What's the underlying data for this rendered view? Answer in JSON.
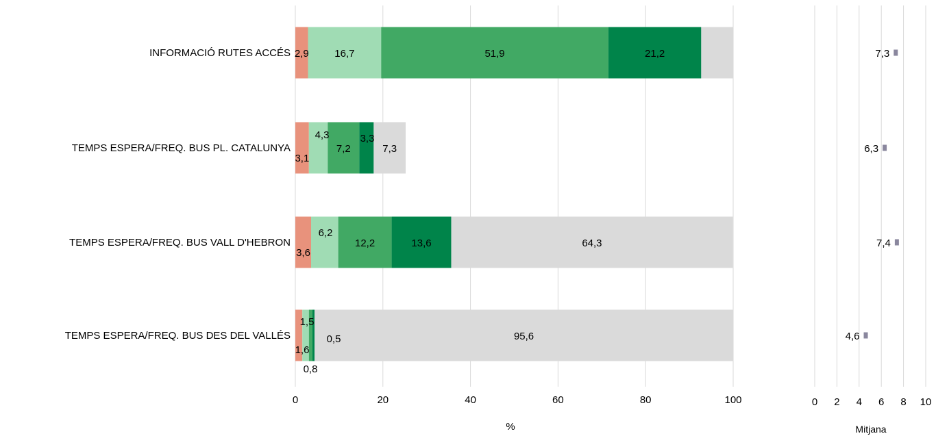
{
  "chart_data": [
    {
      "type": "bar",
      "orientation": "horizontal",
      "stacked": true,
      "title": "",
      "xlabel": "%",
      "ylabel": "",
      "xlim": [
        0,
        100
      ],
      "xticks": [
        0,
        20,
        40,
        60,
        80,
        100
      ],
      "grid": true,
      "legend": "none",
      "categories": [
        "INFORMACIÓ RUTES ACCÉS",
        "TEMPS ESPERA/FREQ. BUS PL. CATALUNYA",
        "TEMPS ESPERA/FREQ. BUS VALL D'HEBRON",
        "TEMPS ESPERA/FREQ. BUS DES DEL VALLÉS"
      ],
      "series": [
        {
          "color": "#e8927c",
          "values": [
            2.9,
            3.1,
            3.6,
            1.6
          ],
          "labels": [
            "2,9",
            "3,1",
            "3,6",
            "1,6"
          ]
        },
        {
          "color": "#a0dcb4",
          "values": [
            16.7,
            4.3,
            6.2,
            1.5
          ],
          "labels": [
            "16,7",
            "4,3",
            "6,2",
            "1,5"
          ]
        },
        {
          "color": "#41a964",
          "values": [
            51.9,
            7.2,
            12.2,
            0.8
          ],
          "labels": [
            "51,9",
            "7,2",
            "12,2",
            "0,8"
          ]
        },
        {
          "color": "#00844a",
          "values": [
            21.2,
            3.3,
            13.6,
            0.5
          ],
          "labels": [
            "21,2",
            "3,3",
            "13,6",
            "0,5"
          ]
        },
        {
          "color": "#dadada",
          "values": [
            7.3,
            7.3,
            64.3,
            95.6
          ],
          "labels": [
            "",
            "7,3",
            "64,3",
            "95,6"
          ]
        }
      ]
    },
    {
      "type": "scatter",
      "title": "",
      "xlabel": "Mitjana",
      "ylabel": "",
      "xlim": [
        0,
        10
      ],
      "xticks": [
        0,
        2,
        4,
        6,
        8,
        10
      ],
      "grid": true,
      "marker_color": "#8a879e",
      "values": [
        7.3,
        6.3,
        7.4,
        4.6
      ],
      "labels": [
        "7,3",
        "6,3",
        "7,4",
        "4,6"
      ]
    }
  ]
}
